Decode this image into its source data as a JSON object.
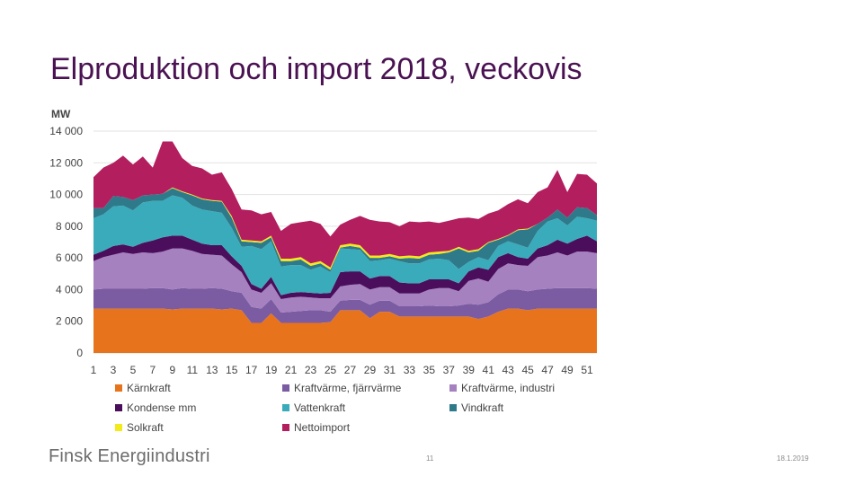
{
  "slide": {
    "title": "Elproduktion och import 2018, veckovis",
    "footer_logo": "Finsk Energiindustri",
    "page_number": "11",
    "date": "18.1.2019"
  },
  "chart_data": {
    "type": "area",
    "stacked": true,
    "title": "",
    "xlabel": "",
    "ylabel": "MW",
    "ylim": [
      0,
      14000
    ],
    "grid": true,
    "legend_position": "bottom",
    "x": [
      1,
      2,
      3,
      4,
      5,
      6,
      7,
      8,
      9,
      10,
      11,
      12,
      13,
      14,
      15,
      16,
      17,
      18,
      19,
      20,
      21,
      22,
      23,
      24,
      25,
      26,
      27,
      28,
      29,
      30,
      31,
      32,
      33,
      34,
      35,
      36,
      37,
      38,
      39,
      40,
      41,
      42,
      43,
      44,
      45,
      46,
      47,
      48,
      49,
      50,
      51,
      52
    ],
    "y_ticks": [
      0,
      2000,
      4000,
      6000,
      8000,
      10000,
      12000,
      14000
    ],
    "y_tick_labels": [
      "0",
      "2 000",
      "4 000",
      "6 000",
      "8 000",
      "10 000",
      "12 000",
      "14 000"
    ],
    "x_ticks": [
      1,
      3,
      5,
      7,
      9,
      11,
      13,
      15,
      17,
      19,
      21,
      23,
      25,
      27,
      29,
      31,
      33,
      35,
      37,
      39,
      41,
      43,
      45,
      47,
      49,
      51
    ],
    "x_tick_labels": [
      "1",
      "3",
      "5",
      "7",
      "9",
      "11",
      "13",
      "15",
      "17",
      "19",
      "21",
      "23",
      "25",
      "27",
      "29",
      "31",
      "33",
      "35",
      "37",
      "39",
      "41",
      "43",
      "45",
      "47",
      "49",
      "51"
    ],
    "series": [
      {
        "name": "Kärnkraft",
        "color": "#e8731d",
        "values": [
          2800,
          2800,
          2800,
          2800,
          2800,
          2800,
          2800,
          2800,
          2750,
          2800,
          2800,
          2800,
          2800,
          2750,
          2800,
          2700,
          1900,
          1900,
          2500,
          1900,
          1900,
          1900,
          1900,
          1900,
          1950,
          2700,
          2700,
          2700,
          2200,
          2600,
          2600,
          2300,
          2300,
          2300,
          2300,
          2300,
          2300,
          2300,
          2300,
          2150,
          2300,
          2600,
          2800,
          2800,
          2700,
          2800,
          2800,
          2800,
          2800,
          2800,
          2800,
          2800
        ]
      },
      {
        "name": "Kraftvärme, fjärrvärme",
        "color": "#7b5ba1",
        "values": [
          1200,
          1250,
          1250,
          1250,
          1250,
          1250,
          1300,
          1300,
          1250,
          1300,
          1250,
          1250,
          1300,
          1300,
          1100,
          1100,
          1000,
          900,
          900,
          650,
          700,
          750,
          800,
          800,
          650,
          600,
          650,
          650,
          850,
          700,
          700,
          650,
          650,
          650,
          700,
          650,
          650,
          700,
          800,
          900,
          900,
          1100,
          1200,
          1200,
          1200,
          1200,
          1250,
          1300,
          1300,
          1300,
          1300,
          1250
        ]
      },
      {
        "name": "Kraftvärme, industri",
        "color": "#a581bf",
        "values": [
          1800,
          2000,
          2150,
          2300,
          2200,
          2300,
          2200,
          2300,
          2600,
          2500,
          2400,
          2200,
          2100,
          2100,
          1700,
          1300,
          1100,
          1000,
          1000,
          850,
          900,
          900,
          800,
          750,
          850,
          900,
          950,
          1000,
          950,
          850,
          850,
          800,
          800,
          800,
          1000,
          1150,
          1150,
          900,
          1450,
          1650,
          1300,
          1600,
          1650,
          1550,
          1600,
          2050,
          2100,
          2250,
          2050,
          2300,
          2300,
          2250
        ]
      },
      {
        "name": "Kondense mm",
        "color": "#4b0e5c",
        "values": [
          400,
          400,
          550,
          500,
          450,
          600,
          800,
          900,
          800,
          800,
          700,
          650,
          600,
          650,
          500,
          400,
          350,
          250,
          400,
          250,
          300,
          300,
          300,
          300,
          350,
          900,
          850,
          800,
          700,
          700,
          700,
          700,
          650,
          650,
          650,
          550,
          550,
          500,
          600,
          700,
          750,
          750,
          650,
          500,
          450,
          550,
          650,
          800,
          750,
          800,
          1000,
          750
        ]
      },
      {
        "name": "Vattenkraft",
        "color": "#3aabba",
        "values": [
          2300,
          2300,
          2500,
          2450,
          2300,
          2550,
          2500,
          2300,
          2550,
          2400,
          2150,
          2150,
          2150,
          2050,
          1800,
          1200,
          2400,
          2500,
          2250,
          1800,
          1750,
          1700,
          1450,
          1700,
          1300,
          1500,
          1400,
          1350,
          1100,
          1000,
          1100,
          1350,
          1250,
          1250,
          1250,
          1300,
          1200,
          900,
          600,
          650,
          600,
          700,
          750,
          800,
          700,
          1100,
          1500,
          1350,
          1150,
          1400,
          1100,
          1300
        ]
      },
      {
        "name": "Vindkraft",
        "color": "#2f7a8a",
        "values": [
          650,
          400,
          650,
          550,
          650,
          450,
          400,
          450,
          450,
          350,
          650,
          650,
          650,
          700,
          650,
          350,
          250,
          400,
          250,
          350,
          250,
          350,
          250,
          200,
          150,
          50,
          200,
          150,
          200,
          150,
          150,
          150,
          350,
          300,
          300,
          300,
          500,
          1300,
          600,
          400,
          1100,
          400,
          350,
          900,
          1150,
          450,
          250,
          550,
          500,
          600,
          650,
          350
        ]
      },
      {
        "name": "Solkraft",
        "color": "#f2ea1a",
        "values": [
          0,
          0,
          0,
          0,
          0,
          0,
          0,
          0,
          50,
          50,
          50,
          50,
          50,
          50,
          100,
          100,
          100,
          100,
          100,
          150,
          150,
          150,
          150,
          150,
          150,
          150,
          150,
          150,
          150,
          150,
          150,
          150,
          150,
          150,
          150,
          150,
          100,
          100,
          100,
          100,
          50,
          50,
          50,
          50,
          50,
          0,
          0,
          0,
          0,
          0,
          0,
          0
        ]
      },
      {
        "name": "Nettoimport",
        "color": "#b31e5e",
        "values": [
          1950,
          2550,
          2100,
          2600,
          2250,
          2450,
          1700,
          3300,
          2900,
          2100,
          1800,
          1900,
          1600,
          1800,
          1700,
          1900,
          1900,
          1700,
          1500,
          1750,
          2200,
          2200,
          2700,
          2350,
          1950,
          1300,
          1500,
          1850,
          2250,
          2150,
          2000,
          1900,
          2150,
          2150,
          1950,
          1800,
          1900,
          1800,
          2100,
          1900,
          1800,
          1800,
          1950,
          1900,
          1600,
          2000,
          1900,
          2500,
          1600,
          2100,
          2100,
          2000
        ]
      }
    ]
  }
}
